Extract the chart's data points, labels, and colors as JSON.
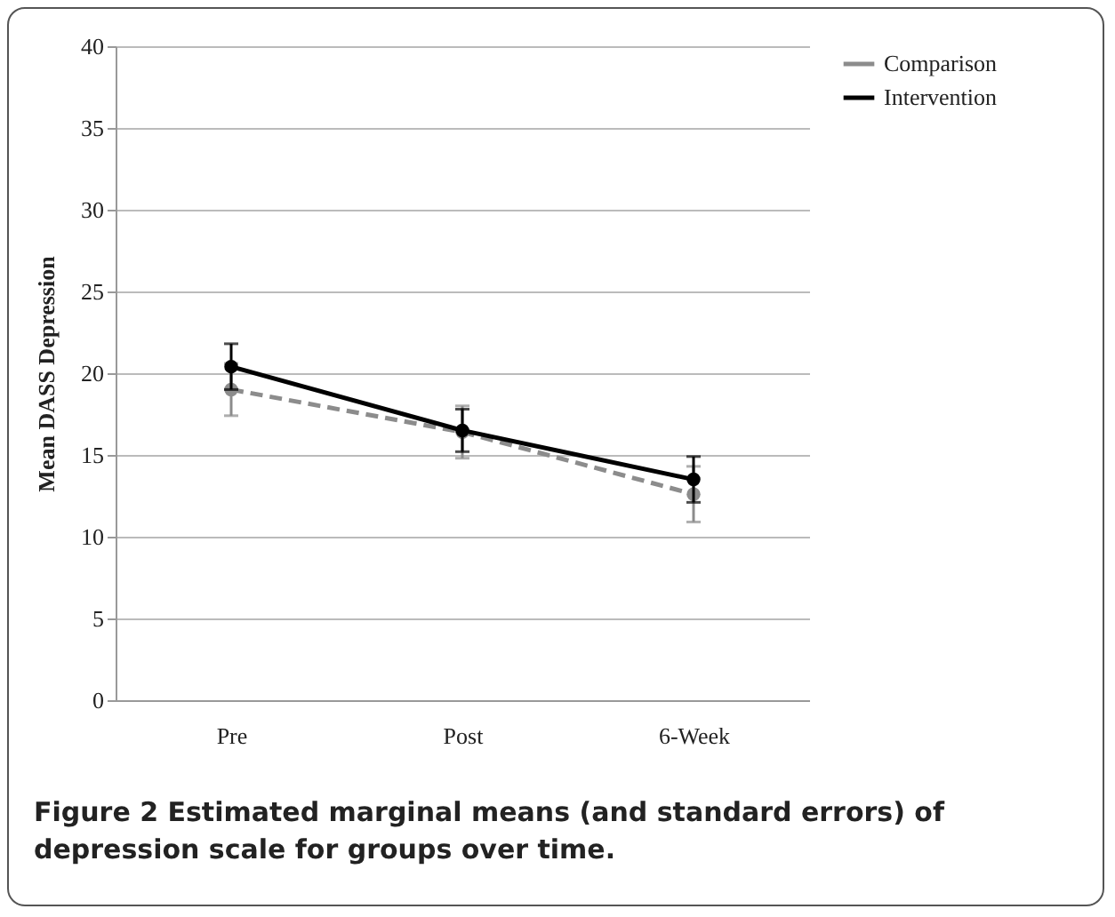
{
  "chart_data": {
    "type": "line",
    "ylabel": "Mean DASS Depression",
    "categories": [
      "Pre",
      "Post",
      "6-Week"
    ],
    "series": [
      {
        "name": "Comparison",
        "color": "#8c8c8c",
        "line_style": "dashed",
        "values": [
          19.0,
          16.4,
          12.6
        ],
        "errors": [
          1.6,
          1.6,
          1.7
        ]
      },
      {
        "name": "Intervention",
        "color": "#000000",
        "line_style": "solid",
        "values": [
          20.4,
          16.5,
          13.5
        ],
        "errors": [
          1.4,
          1.3,
          1.4
        ]
      }
    ],
    "ylim": [
      0,
      40
    ],
    "yticks": [
      0,
      5,
      10,
      15,
      20,
      25,
      30,
      35,
      40
    ],
    "grid": "y",
    "legend": "right",
    "marker": "circle",
    "annotations": [
      "Figure 2 Estimated marginal means (and standard errors) of depression scale for groups over time."
    ]
  }
}
